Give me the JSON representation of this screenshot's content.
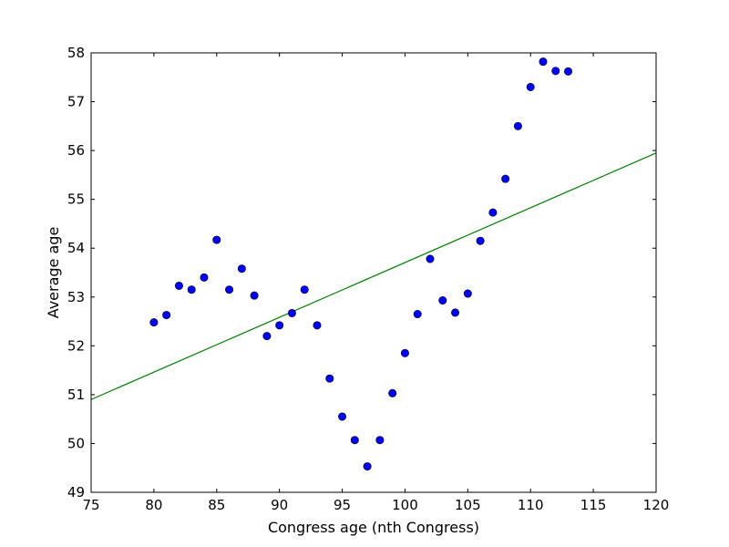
{
  "chart_data": {
    "type": "scatter",
    "xlabel": "Congress age (nth Congress)",
    "ylabel": "Average age",
    "xlim": [
      75,
      120
    ],
    "ylim": [
      49,
      58
    ],
    "xticks": [
      75,
      80,
      85,
      90,
      95,
      100,
      105,
      110,
      115,
      120
    ],
    "yticks": [
      49,
      50,
      51,
      52,
      53,
      54,
      55,
      56,
      57,
      58
    ],
    "grid": false,
    "legend": "none",
    "series": [
      {
        "kind": "points",
        "color": "#0000ff",
        "points": [
          {
            "x": 80,
            "y": 52.48
          },
          {
            "x": 81,
            "y": 52.63
          },
          {
            "x": 82,
            "y": 53.23
          },
          {
            "x": 83,
            "y": 53.15
          },
          {
            "x": 84,
            "y": 53.4
          },
          {
            "x": 85,
            "y": 54.17
          },
          {
            "x": 86,
            "y": 53.15
          },
          {
            "x": 87,
            "y": 53.58
          },
          {
            "x": 88,
            "y": 53.03
          },
          {
            "x": 89,
            "y": 52.2
          },
          {
            "x": 90,
            "y": 52.42
          },
          {
            "x": 91,
            "y": 52.67
          },
          {
            "x": 92,
            "y": 53.15
          },
          {
            "x": 93,
            "y": 52.42
          },
          {
            "x": 94,
            "y": 51.33
          },
          {
            "x": 95,
            "y": 50.55
          },
          {
            "x": 96,
            "y": 50.07
          },
          {
            "x": 97,
            "y": 49.53
          },
          {
            "x": 98,
            "y": 50.07
          },
          {
            "x": 99,
            "y": 51.03
          },
          {
            "x": 100,
            "y": 51.85
          },
          {
            "x": 101,
            "y": 52.65
          },
          {
            "x": 102,
            "y": 53.78
          },
          {
            "x": 103,
            "y": 52.93
          },
          {
            "x": 104,
            "y": 52.68
          },
          {
            "x": 105,
            "y": 53.07
          },
          {
            "x": 106,
            "y": 54.15
          },
          {
            "x": 107,
            "y": 54.73
          },
          {
            "x": 108,
            "y": 55.42
          },
          {
            "x": 109,
            "y": 56.5
          },
          {
            "x": 110,
            "y": 57.3
          },
          {
            "x": 111,
            "y": 57.82
          },
          {
            "x": 112,
            "y": 57.63
          },
          {
            "x": 113,
            "y": 57.62
          }
        ]
      },
      {
        "kind": "line",
        "color": "#008000",
        "x": [
          75,
          120
        ],
        "y": [
          50.9,
          55.95
        ]
      }
    ]
  }
}
